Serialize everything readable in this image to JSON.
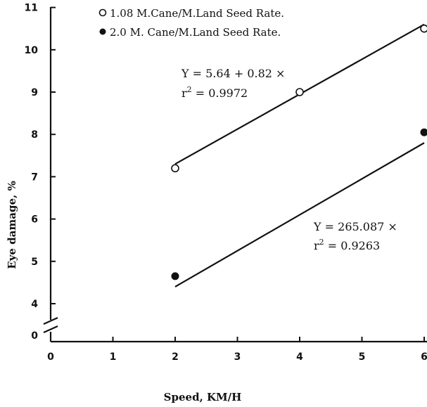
{
  "chart_data": {
    "type": "scatter",
    "xlabel": "Speed, KM/H",
    "ylabel": "Eye damage, %",
    "x_ticks": [
      "0",
      "1",
      "2",
      "3",
      "4",
      "5",
      "6"
    ],
    "y_ticks": [
      "4",
      "5",
      "6",
      "7",
      "8",
      "9",
      "10",
      "11"
    ],
    "y_break_tick": "0",
    "xlim": [
      0,
      6
    ],
    "ylim": [
      3.5,
      11
    ],
    "axis_break": true,
    "grid": false,
    "legend_position": "top-left",
    "series": [
      {
        "name": "1.08 M.Cane/M.Land Seed Rate.",
        "marker": "open-circle",
        "x": [
          2,
          4,
          6
        ],
        "y": [
          7.2,
          9.0,
          10.5
        ],
        "fit": {
          "x": [
            2,
            6
          ],
          "y": [
            7.3,
            10.6
          ]
        },
        "equation": "Y = 5.64 + 0.82 ×",
        "r2_label": "r",
        "r2_sup": "2",
        "r2_value": " = 0.9972"
      },
      {
        "name": "2.0 M. Cane/M.Land Seed Rate.",
        "marker": "filled-circle",
        "x": [
          2,
          6
        ],
        "y": [
          4.65,
          8.05
        ],
        "fit": {
          "x": [
            2,
            6
          ],
          "y": [
            4.4,
            7.8
          ]
        },
        "equation": "Y = 265.087 ×",
        "r2_label": "r",
        "r2_sup": "2",
        "r2_value": " = 0.9263"
      }
    ]
  }
}
